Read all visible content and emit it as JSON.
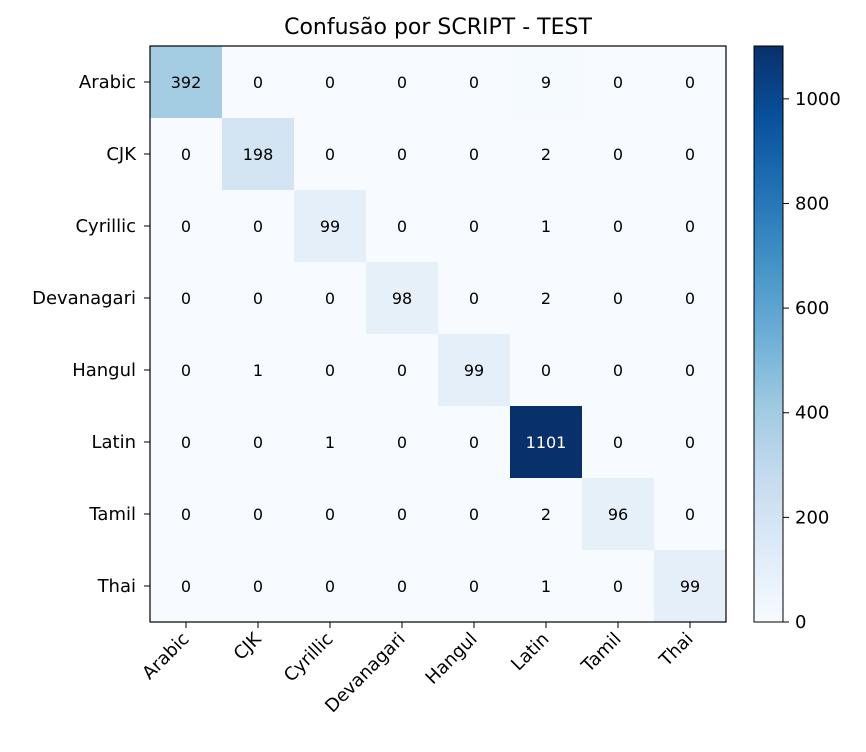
{
  "chart_data": {
    "type": "heatmap",
    "title": "Confusão por SCRIPT - TEST",
    "xlabel": "",
    "ylabel": "",
    "row_labels": [
      "Arabic",
      "CJK",
      "Cyrillic",
      "Devanagari",
      "Hangul",
      "Latin",
      "Tamil",
      "Thai"
    ],
    "col_labels": [
      "Arabic",
      "CJK",
      "Cyrillic",
      "Devanagari",
      "Hangul",
      "Latin",
      "Tamil",
      "Thai"
    ],
    "matrix": [
      [
        392,
        0,
        0,
        0,
        0,
        9,
        0,
        0
      ],
      [
        0,
        198,
        0,
        0,
        0,
        2,
        0,
        0
      ],
      [
        0,
        0,
        99,
        0,
        0,
        1,
        0,
        0
      ],
      [
        0,
        0,
        0,
        98,
        0,
        2,
        0,
        0
      ],
      [
        0,
        1,
        0,
        0,
        99,
        0,
        0,
        0
      ],
      [
        0,
        0,
        1,
        0,
        0,
        1101,
        0,
        0
      ],
      [
        0,
        0,
        0,
        0,
        0,
        2,
        96,
        0
      ],
      [
        0,
        0,
        0,
        0,
        0,
        1,
        0,
        99
      ]
    ],
    "colormap": "Blues",
    "color_range": [
      0,
      1101
    ],
    "colorbar_ticks": [
      0,
      200,
      400,
      600,
      800,
      1000
    ],
    "colors": {
      "low": "#f7fbff",
      "high": "#08306b",
      "text_dark": "#000000",
      "text_light": "#ffffff"
    },
    "grid": false,
    "legend": "colorbar-right"
  }
}
